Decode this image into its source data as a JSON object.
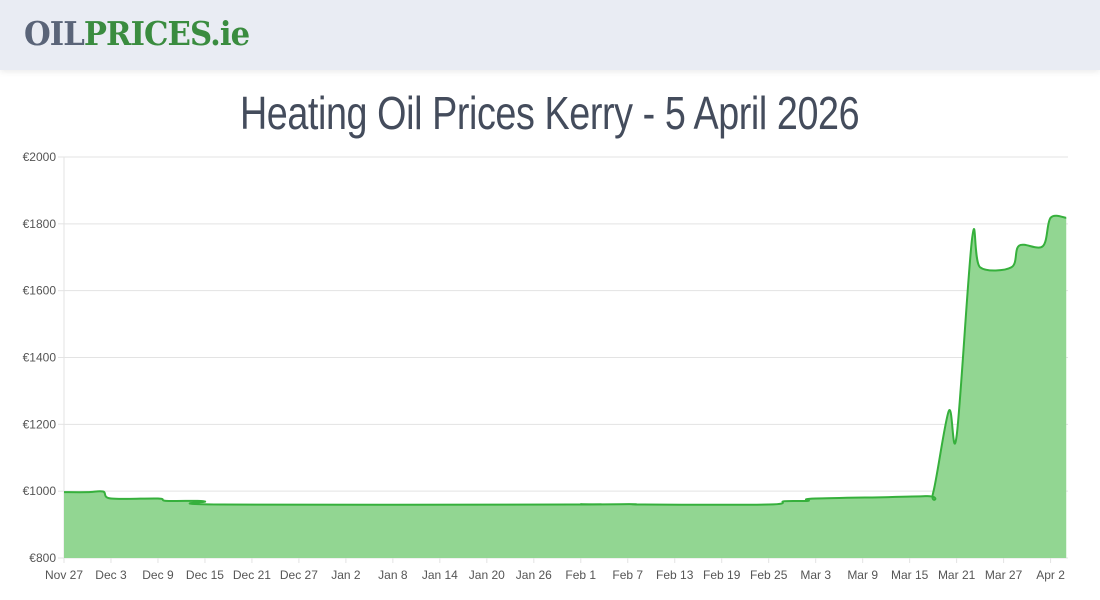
{
  "header": {
    "logo_part1": "OIL",
    "logo_part2": "PRICES.ie"
  },
  "page_title": "Heating Oil Prices Kerry - 5 April 2026",
  "chart_data": {
    "type": "area",
    "title": "",
    "xlabel": "",
    "ylabel": "",
    "ylim": [
      800,
      2000
    ],
    "y_ticks": [
      "€800",
      "€1000",
      "€1200",
      "€1400",
      "€1600",
      "€1800",
      "€2000"
    ],
    "y_tick_values": [
      800,
      1000,
      1200,
      1400,
      1600,
      1800,
      2000
    ],
    "x_ticks": [
      "Nov 27",
      "Dec 3",
      "Dec 9",
      "Dec 15",
      "Dec 21",
      "Dec 27",
      "Jan 2",
      "Jan 8",
      "Jan 14",
      "Jan 20",
      "Jan 26",
      "Feb 1",
      "Feb 7",
      "Feb 13",
      "Feb 19",
      "Feb 25",
      "Mar 3",
      "Mar 9",
      "Mar 15",
      "Mar 21",
      "Mar 27",
      "Apr 2"
    ],
    "grid": true,
    "colors": {
      "line": "#36b03c",
      "fill": "#92d692",
      "grid": "#e3e3e3"
    },
    "points": [
      {
        "x": "2025-11-27",
        "y": 997
      },
      {
        "x": "2025-11-30",
        "y": 997
      },
      {
        "x": "2025-12-02",
        "y": 999
      },
      {
        "x": "2025-12-03",
        "y": 978
      },
      {
        "x": "2025-12-09",
        "y": 978
      },
      {
        "x": "2025-12-10",
        "y": 971
      },
      {
        "x": "2025-12-14",
        "y": 971
      },
      {
        "x": "2025-12-15",
        "y": 969
      },
      {
        "x": "2025-12-17",
        "y": 960
      },
      {
        "x": "2026-01-31",
        "y": 960
      },
      {
        "x": "2026-02-01",
        "y": 961
      },
      {
        "x": "2026-02-02",
        "y": 960
      },
      {
        "x": "2026-02-06",
        "y": 961
      },
      {
        "x": "2026-02-08",
        "y": 961
      },
      {
        "x": "2026-02-09",
        "y": 960
      },
      {
        "x": "2026-02-25",
        "y": 960
      },
      {
        "x": "2026-02-27",
        "y": 970
      },
      {
        "x": "2026-03-02",
        "y": 971
      },
      {
        "x": "2026-03-03",
        "y": 978
      },
      {
        "x": "2026-03-17",
        "y": 985
      },
      {
        "x": "2026-03-18",
        "y": 995
      },
      {
        "x": "2026-03-20",
        "y": 1240
      },
      {
        "x": "2026-03-21",
        "y": 1165
      },
      {
        "x": "2026-03-23",
        "y": 1760
      },
      {
        "x": "2026-03-24",
        "y": 1670
      },
      {
        "x": "2026-03-28",
        "y": 1670
      },
      {
        "x": "2026-03-29",
        "y": 1735
      },
      {
        "x": "2026-04-01",
        "y": 1733
      },
      {
        "x": "2026-04-02",
        "y": 1818
      },
      {
        "x": "2026-04-04",
        "y": 1818
      }
    ]
  }
}
